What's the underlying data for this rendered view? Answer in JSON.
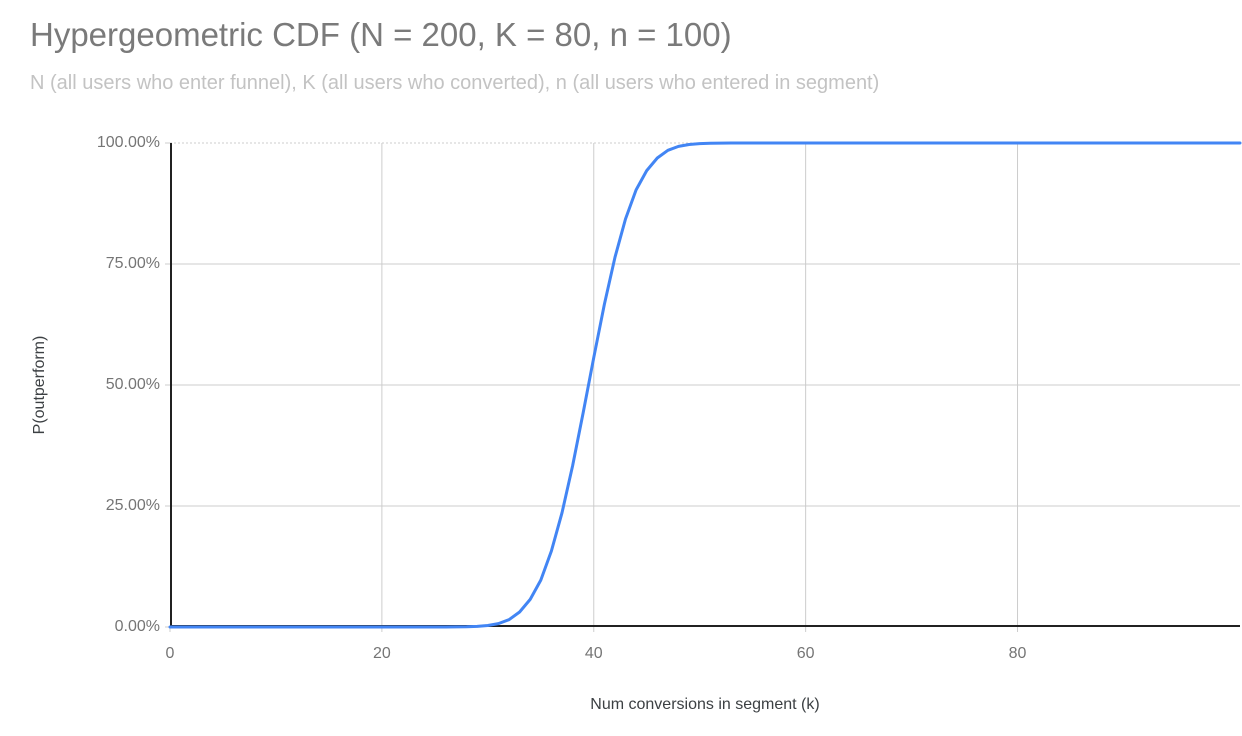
{
  "header": {
    "title": "Hypergeometric CDF (N = 200, K = 80, n = 100)",
    "subtitle": "N (all users who enter funnel), K (all users who converted), n (all users who entered in segment)"
  },
  "colors": {
    "background": "#ffffff",
    "line": "#4285f4",
    "grid": "#cccccc",
    "axis": "#212121",
    "title_text": "#7a7a7a",
    "subtitle_text": "#c3c3c3",
    "tick_text": "#757575",
    "axis_title_text": "#3c4043"
  },
  "chart_data": {
    "type": "line",
    "title": "Hypergeometric CDF (N = 200, K = 80, n = 100)",
    "subtitle": "N (all users who enter funnel), K (all users who converted), n (all users who entered in segment)",
    "xlabel": "Num conversions in segment (k)",
    "ylabel": "P(outperform)",
    "xlim": [
      0,
      101
    ],
    "ylim": [
      0,
      1
    ],
    "grid": true,
    "legend": "none",
    "xticks": [
      0,
      20,
      40,
      60,
      80
    ],
    "yticks": [
      0,
      0.25,
      0.5,
      0.75,
      1
    ],
    "ytick_labels": [
      "0.00%",
      "25.00%",
      "50.00%",
      "75.00%",
      "100.00%"
    ],
    "series": [
      {
        "name": "P(outperform)",
        "x": [
          0,
          5,
          10,
          15,
          20,
          25,
          26,
          27,
          28,
          29,
          30,
          31,
          32,
          33,
          34,
          35,
          36,
          37,
          38,
          39,
          40,
          41,
          42,
          43,
          44,
          45,
          46,
          47,
          48,
          49,
          50,
          51,
          52,
          53,
          54,
          55,
          60,
          70,
          80,
          90,
          101
        ],
        "y": [
          0,
          0,
          0,
          0,
          0,
          5e-05,
          0.0001,
          0.0002,
          0.0005,
          0.0013,
          0.003,
          0.007,
          0.015,
          0.031,
          0.057,
          0.097,
          0.157,
          0.236,
          0.333,
          0.443,
          0.557,
          0.667,
          0.764,
          0.843,
          0.903,
          0.943,
          0.969,
          0.985,
          0.993,
          0.997,
          0.9987,
          0.9995,
          0.9998,
          0.9999,
          1,
          1,
          1,
          1,
          1,
          1,
          1
        ]
      }
    ]
  }
}
